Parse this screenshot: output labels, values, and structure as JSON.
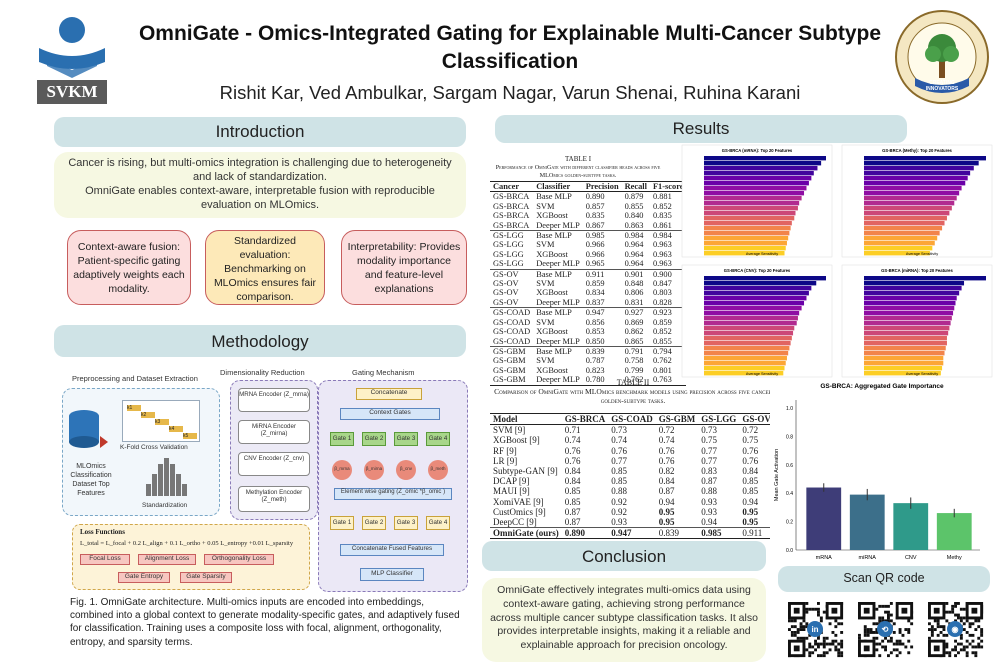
{
  "header": {
    "title": "OmniGate - Omics-Integrated Gating for Explainable Multi-Cancer Subtype Classification",
    "authors": "Rishit Kar, Ved Ambulkar, Sargam Nagar, Varun Shenai, Ruhina Karani",
    "logo_left_text": "SVKM",
    "logo_right_motto": "CREATING INNOVATORS",
    "logo_right_ring": "SVKM'S DWARKADAS J. SANGHVI COLLEGE OF ENGINEERING"
  },
  "introduction": {
    "heading": "Introduction",
    "p1": "Cancer is rising, but multi-omics integration is challenging due to heterogeneity and lack of standardization.",
    "p2": "OmniGate enables context-aware, interpretable fusion with reproducible evaluation on MLOmics.",
    "cards": [
      {
        "text": "Context-aware fusion: Patient-specific gating adaptively weights each modality."
      },
      {
        "text": "Standardized evaluation: Benchmarking on MLOmics ensures fair comparison."
      },
      {
        "text": "Interpretability: Provides modality importance and feature-level explanations"
      }
    ]
  },
  "methodology": {
    "heading": "Methodology",
    "col1": "Preprocessing and Dataset Extraction",
    "col2": "Dimensionality Reduction",
    "col3": "Gating Mechanism",
    "kfold": "K-Fold Cross Validation",
    "kblocks": [
      "k1",
      "k2",
      "k3",
      "k4",
      "k5"
    ],
    "dataset": "MLOmics Classification Dataset Top Features",
    "standardization": "Standardization",
    "encoders": [
      "MRNA Encoder (Z_mrna)",
      "MiRNA Encoder (Z_mirna)",
      "CNV Encoder (Z_cnv)",
      "Methylation Encoder (Z_meth)"
    ],
    "concatenate": "Concatenate",
    "context_gates": "Context Gates",
    "gates": [
      "Gate 1",
      "Gate 2",
      "Gate 3",
      "Gate 4"
    ],
    "betas": [
      "β_mrna",
      "β_mirna",
      "β_cnv",
      "β_meth"
    ],
    "elementwise": "Element wise gating (Z_omic *β_omic )",
    "concat_fused": "Concatenate Fused Features",
    "classifier": "MLP Classifier",
    "loss_title": "Loss Functions",
    "loss_formula": "L_total = L_focal + 0.2 L_align + 0.1 L_ortho + 0.05 L_entropy +0.01 L_sparsity",
    "loss_tags": [
      "Focal Loss",
      "Alignment Loss",
      "Orthogonality Loss",
      "Gate Entropy",
      "Gate Sparsity"
    ],
    "caption": "Fig. 1. OmniGate architecture. Multi-omics inputs are encoded into embeddings, combined into a global context to generate modality-specific gates, and adaptively fused for classification. Training uses a composite loss with focal, alignment, orthogonality, entropy, and sparsity terms."
  },
  "results": {
    "heading": "Results",
    "table1": {
      "label": "TABLE I",
      "caption": "Performance of OmniGate with different classifier heads across five MLOmics golden-subtype tasks.",
      "columns": [
        "Cancer",
        "Classifier",
        "Precision",
        "Recall",
        "F1-score"
      ],
      "rows": [
        [
          "GS-BRCA",
          "Base MLP",
          "0.890",
          "0.879",
          "0.881"
        ],
        [
          "GS-BRCA",
          "SVM",
          "0.857",
          "0.855",
          "0.852"
        ],
        [
          "GS-BRCA",
          "XGBoost",
          "0.835",
          "0.840",
          "0.835"
        ],
        [
          "GS-BRCA",
          "Deeper MLP",
          "0.867",
          "0.863",
          "0.861"
        ],
        [
          "GS-LGG",
          "Base MLP",
          "0.985",
          "0.984",
          "0.984"
        ],
        [
          "GS-LGG",
          "SVM",
          "0.966",
          "0.964",
          "0.963"
        ],
        [
          "GS-LGG",
          "XGBoost",
          "0.966",
          "0.964",
          "0.963"
        ],
        [
          "GS-LGG",
          "Deeper MLP",
          "0.965",
          "0.964",
          "0.963"
        ],
        [
          "GS-OV",
          "Base MLP",
          "0.911",
          "0.901",
          "0.900"
        ],
        [
          "GS-OV",
          "SVM",
          "0.859",
          "0.848",
          "0.847"
        ],
        [
          "GS-OV",
          "XGBoost",
          "0.834",
          "0.806",
          "0.803"
        ],
        [
          "GS-OV",
          "Deeper MLP",
          "0.837",
          "0.831",
          "0.828"
        ],
        [
          "GS-COAD",
          "Base MLP",
          "0.947",
          "0.927",
          "0.923"
        ],
        [
          "GS-COAD",
          "SVM",
          "0.856",
          "0.869",
          "0.859"
        ],
        [
          "GS-COAD",
          "XGBoost",
          "0.853",
          "0.862",
          "0.852"
        ],
        [
          "GS-COAD",
          "Deeper MLP",
          "0.850",
          "0.865",
          "0.855"
        ],
        [
          "GS-GBM",
          "Base MLP",
          "0.839",
          "0.791",
          "0.794"
        ],
        [
          "GS-GBM",
          "SVM",
          "0.787",
          "0.758",
          "0.762"
        ],
        [
          "GS-GBM",
          "XGBoost",
          "0.823",
          "0.799",
          "0.801"
        ],
        [
          "GS-GBM",
          "Deeper MLP",
          "0.780",
          "0.762",
          "0.763"
        ]
      ]
    },
    "table2": {
      "label": "TABLE II",
      "caption": "Comparison of OmniGate with MLOmics benchmark models using precision across five cancer golden-subtype tasks.",
      "columns": [
        "Model",
        "GS-BRCA",
        "GS-COAD",
        "GS-GBM",
        "GS-LGG",
        "GS-OV"
      ],
      "rows": [
        [
          "SVM [9]",
          "0.71",
          "0.73",
          "0.72",
          "0.73",
          "0.72"
        ],
        [
          "XGBoost [9]",
          "0.74",
          "0.74",
          "0.74",
          "0.75",
          "0.75"
        ],
        [
          "RF [9]",
          "0.76",
          "0.76",
          "0.76",
          "0.77",
          "0.76"
        ],
        [
          "LR [9]",
          "0.76",
          "0.77",
          "0.76",
          "0.77",
          "0.76"
        ],
        [
          "Subtype-GAN [9]",
          "0.84",
          "0.85",
          "0.82",
          "0.83",
          "0.84"
        ],
        [
          "DCAP [9]",
          "0.84",
          "0.85",
          "0.84",
          "0.87",
          "0.85"
        ],
        [
          "MAUI [9]",
          "0.85",
          "0.88",
          "0.87",
          "0.88",
          "0.85"
        ],
        [
          "XomiVAE [9]",
          "0.85",
          "0.92",
          "0.94",
          "0.93",
          "0.94"
        ],
        [
          "CustOmics [9]",
          "0.87",
          "0.92",
          "0.95",
          "0.93",
          "0.95"
        ],
        [
          "DeepCC [9]",
          "0.87",
          "0.93",
          "0.95",
          "0.94",
          "0.95"
        ],
        [
          "OmniGate (ours)",
          "0.890",
          "0.947",
          "0.839",
          "0.985",
          "0.911"
        ]
      ],
      "bold_cells": [
        [
          8,
          3
        ],
        [
          8,
          5
        ],
        [
          9,
          3
        ],
        [
          9,
          5
        ],
        [
          10,
          0
        ],
        [
          10,
          1
        ],
        [
          10,
          2
        ],
        [
          10,
          4
        ]
      ]
    },
    "feature_plots": [
      {
        "title": "GS-BRCA (mRNA): Top 20 Features",
        "xlabel": "Average Sensitivity",
        "bars": [
          1.0,
          0.96,
          0.93,
          0.9,
          0.88,
          0.86,
          0.84,
          0.82,
          0.8,
          0.78,
          0.77,
          0.75,
          0.74,
          0.72,
          0.71,
          0.7,
          0.69,
          0.68,
          0.67,
          0.66
        ]
      },
      {
        "title": "GS-BRCA (Methy): Top 20 Features",
        "xlabel": "Average Sensitivity",
        "bars": [
          1.0,
          0.94,
          0.9,
          0.87,
          0.85,
          0.83,
          0.8,
          0.78,
          0.76,
          0.74,
          0.72,
          0.7,
          0.68,
          0.66,
          0.64,
          0.62,
          0.6,
          0.58,
          0.56,
          0.54
        ]
      },
      {
        "title": "GS-BRCA (CNV): Top 20 Features",
        "xlabel": "Average Sensitivity",
        "bars": [
          1.0,
          0.92,
          0.88,
          0.86,
          0.84,
          0.82,
          0.8,
          0.78,
          0.77,
          0.76,
          0.74,
          0.73,
          0.72,
          0.71,
          0.7,
          0.69,
          0.68,
          0.67,
          0.66,
          0.65
        ]
      },
      {
        "title": "GS-BRCA (miRNA): Top 20 Features",
        "xlabel": "Average Sensitivity",
        "bars": [
          1.0,
          0.82,
          0.8,
          0.78,
          0.76,
          0.75,
          0.74,
          0.73,
          0.72,
          0.71,
          0.7,
          0.69,
          0.68,
          0.68,
          0.67,
          0.66,
          0.65,
          0.65,
          0.64,
          0.63
        ]
      }
    ]
  },
  "chart_data": {
    "type": "bar",
    "title": "GS-BRCA: Aggregated Gate Importance",
    "categories": [
      "mRNA",
      "miRNA",
      "CNV",
      "Methy"
    ],
    "values": [
      0.44,
      0.39,
      0.33,
      0.26
    ],
    "errors": [
      0.03,
      0.04,
      0.04,
      0.03
    ],
    "colors": [
      "#3e3d78",
      "#3c6f8a",
      "#2f9a8a",
      "#5cc46a"
    ],
    "ylabel": "Mean Gate Activation",
    "ylim": [
      0,
      1.0
    ],
    "yticks": [
      "0.0",
      "0.2",
      "0.4",
      "0.6",
      "0.8",
      "1.0"
    ]
  },
  "conclusion": {
    "heading": "Conclusion",
    "text": "OmniGate effectively integrates multi-omics data using context-aware gating, achieving strong performance across multiple cancer subtype classification tasks. It also provides interpretable insights, making it a reliable and explainable approach for precision oncology."
  },
  "qr": {
    "heading": "Scan QR code",
    "codes": [
      {
        "icon": "linkedin-icon",
        "glyph": "in"
      },
      {
        "icon": "share-icon",
        "glyph": "⟲"
      },
      {
        "icon": "github-icon",
        "glyph": "◉"
      }
    ]
  }
}
